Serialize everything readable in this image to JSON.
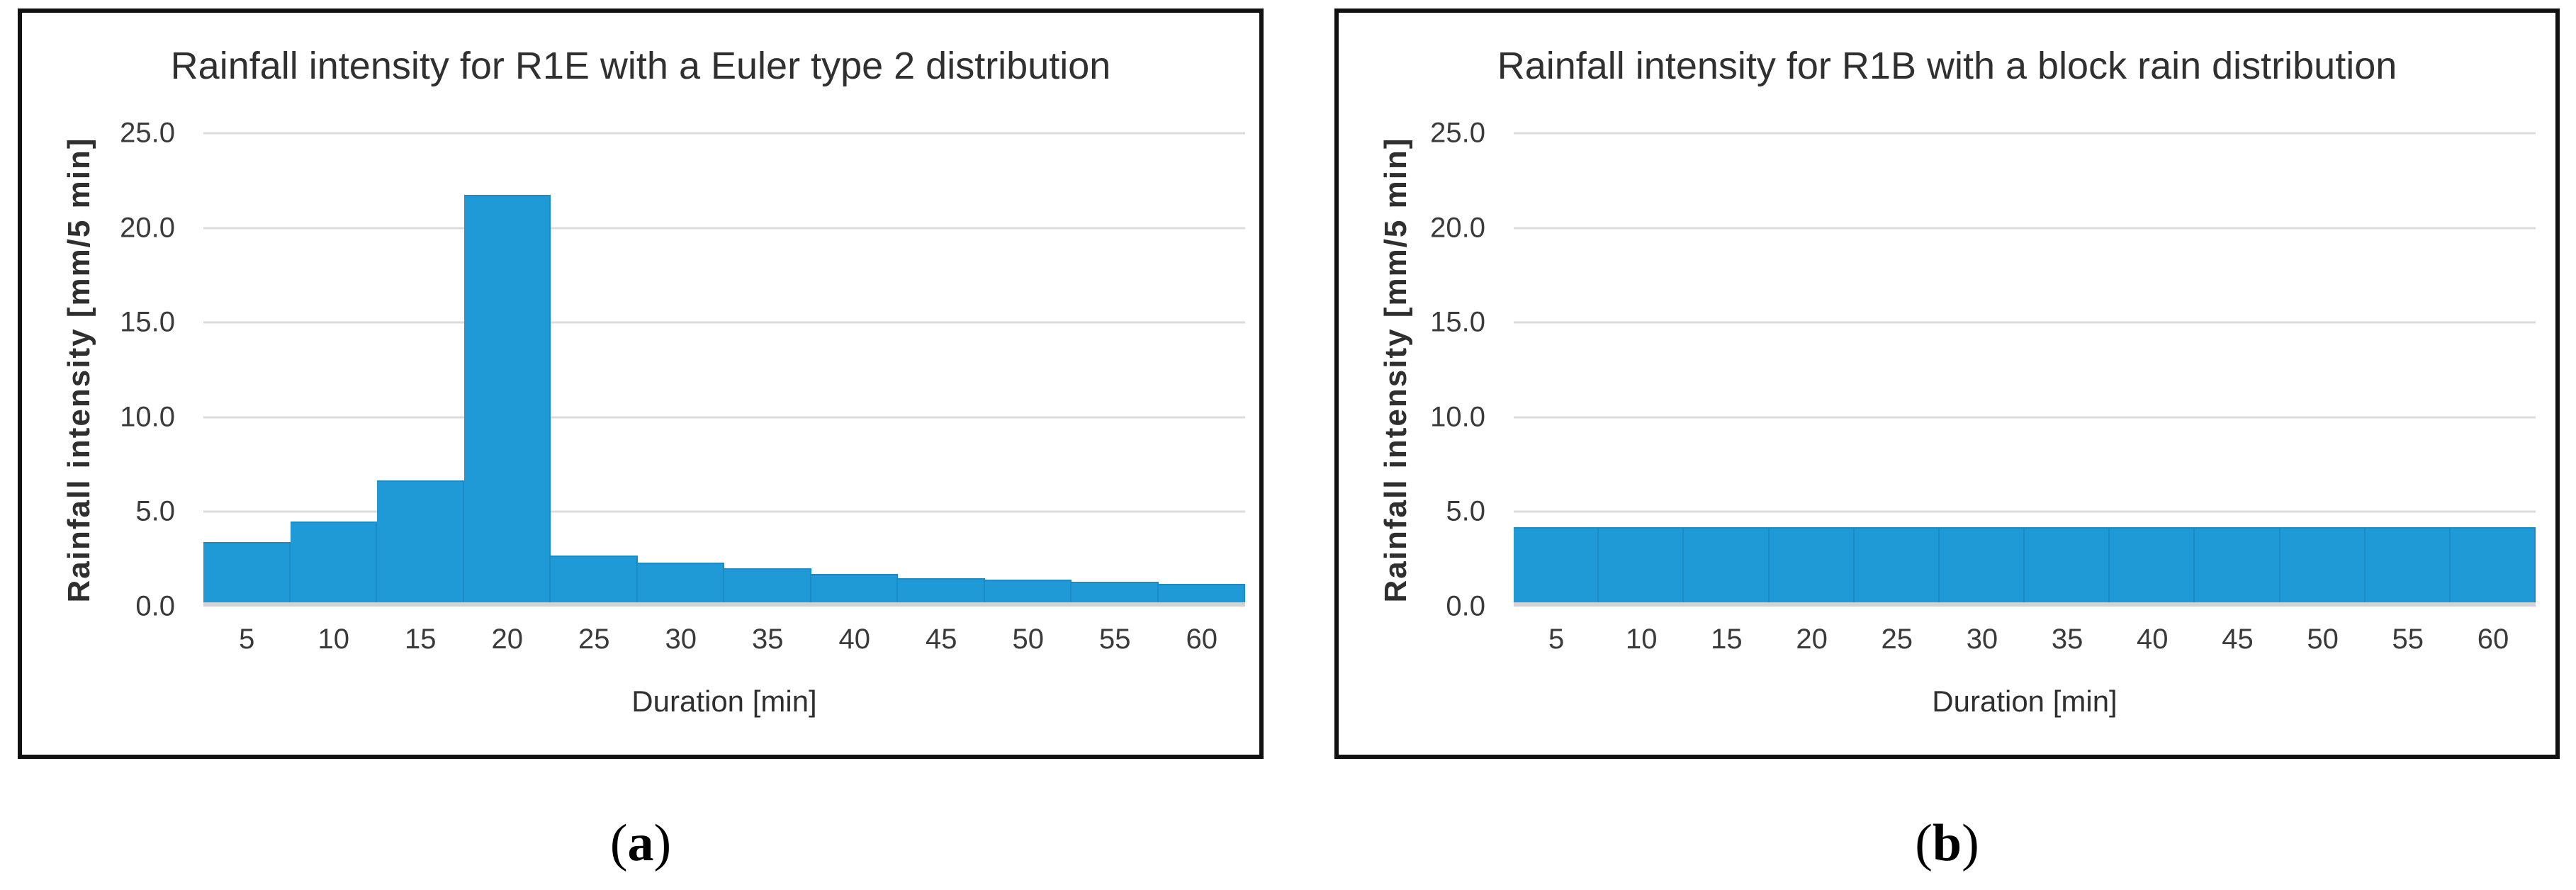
{
  "figure": {
    "captions": [
      {
        "open": "(",
        "letter": "a",
        "close": ")"
      },
      {
        "open": "(",
        "letter": "b",
        "close": ")"
      }
    ]
  },
  "chart_data": [
    {
      "type": "bar",
      "title": "Rainfall intensity for R1E with a Euler type 2 distribution",
      "xlabel": "Duration [min]",
      "ylabel": "Rainfall intensity [mm/5 min]",
      "categories": [
        "5",
        "10",
        "15",
        "20",
        "25",
        "30",
        "35",
        "40",
        "45",
        "50",
        "55",
        "60"
      ],
      "values": [
        3.2,
        4.3,
        6.5,
        21.7,
        2.5,
        2.1,
        1.8,
        1.5,
        1.3,
        1.2,
        1.1,
        1.0
      ],
      "ylim": [
        0,
        25
      ],
      "yticks": [
        "0.0",
        "5.0",
        "10.0",
        "15.0",
        "20.0",
        "25.0"
      ],
      "grid": true,
      "legend": "none",
      "bar_color": "#1F9AD6",
      "gridline_color": "#DBDBDB",
      "axis_line_color": "#D2D2D6",
      "text_color": "#3a3a3a"
    },
    {
      "type": "bar",
      "title": "Rainfall intensity for R1B with a block rain distribution",
      "xlabel": "Duration [min]",
      "ylabel": "Rainfall intensity [mm/5 min]",
      "categories": [
        "5",
        "10",
        "15",
        "20",
        "25",
        "30",
        "35",
        "40",
        "45",
        "50",
        "55",
        "60"
      ],
      "values": [
        4.0,
        4.0,
        4.0,
        4.0,
        4.0,
        4.0,
        4.0,
        4.0,
        4.0,
        4.0,
        4.0,
        4.0
      ],
      "ylim": [
        0,
        25
      ],
      "yticks": [
        "0.0",
        "5.0",
        "10.0",
        "15.0",
        "20.0",
        "25.0"
      ],
      "grid": true,
      "legend": "none",
      "bar_color": "#1F9AD6",
      "gridline_color": "#DBDBDB",
      "axis_line_color": "#D2D2D6",
      "text_color": "#3a3a3a"
    }
  ]
}
